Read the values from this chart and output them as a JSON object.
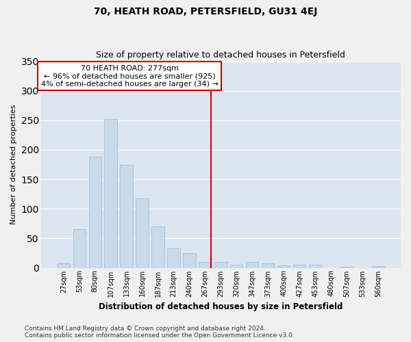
{
  "title": "70, HEATH ROAD, PETERSFIELD, GU31 4EJ",
  "subtitle": "Size of property relative to detached houses in Petersfield",
  "xlabel": "Distribution of detached houses by size in Petersfield",
  "ylabel": "Number of detached properties",
  "bar_labels": [
    "27sqm",
    "53sqm",
    "80sqm",
    "107sqm",
    "133sqm",
    "160sqm",
    "187sqm",
    "213sqm",
    "240sqm",
    "267sqm",
    "293sqm",
    "320sqm",
    "347sqm",
    "373sqm",
    "400sqm",
    "427sqm",
    "453sqm",
    "480sqm",
    "507sqm",
    "533sqm",
    "560sqm"
  ],
  "bar_values": [
    7,
    65,
    188,
    252,
    175,
    118,
    70,
    33,
    25,
    10,
    10,
    5,
    10,
    7,
    4,
    5,
    5,
    0,
    2,
    0,
    3
  ],
  "bar_color": "#c9daea",
  "bar_edgecolor": "#a0b8cc",
  "bar_width": 0.8,
  "vline_color": "#cc0000",
  "annotation_line1": "70 HEATH ROAD: 277sqm",
  "annotation_line2": "← 96% of detached houses are smaller (925)",
  "annotation_line3": "4% of semi-detached houses are larger (34) →",
  "annotation_box_color": "#ffffff",
  "annotation_box_edgecolor": "#cc0000",
  "ylim": [
    0,
    350
  ],
  "yticks": [
    0,
    50,
    100,
    150,
    200,
    250,
    300,
    350
  ],
  "background_color": "#dce6f0",
  "grid_color": "#ffffff",
  "footer_line1": "Contains HM Land Registry data © Crown copyright and database right 2024.",
  "footer_line2": "Contains public sector information licensed under the Open Government Licence v3.0.",
  "title_fontsize": 10,
  "subtitle_fontsize": 9,
  "xlabel_fontsize": 8.5,
  "ylabel_fontsize": 8,
  "tick_fontsize": 7,
  "annotation_fontsize": 8,
  "footer_fontsize": 6.5
}
